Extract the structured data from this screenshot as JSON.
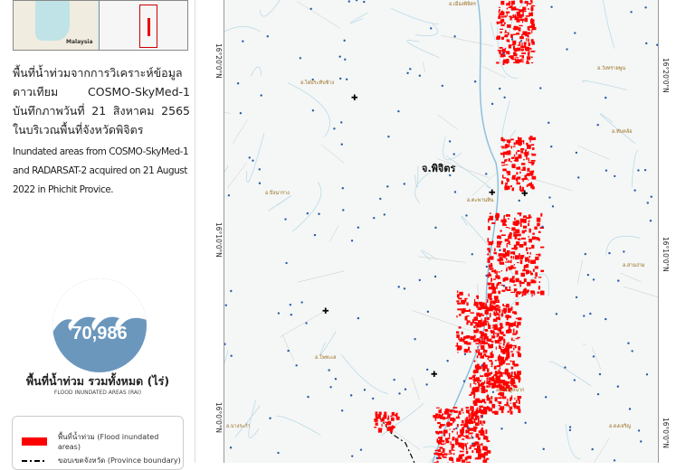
{
  "inset": {
    "label": "Malaysia"
  },
  "title": {
    "thai": "พื้นที่น้ำท่วมจากการวิเคราะห์ข้อมูล ดาวเทียม COSMO-SkyMed-1 บันทึกภาพวันที่ 21 สิงหาคม 2565 ในบริเวณพื้นที่จังหวัดพิจิตร",
    "english": "Inundated areas from COSMO-SkyMed-1 and RADARSAT-2  acquired on 21 August 2022 in Phichit Provice."
  },
  "summary": {
    "value": "70,986",
    "label_th": "พื้นที่น้ำท่วม รวมทั้งหมด (ไร่)",
    "label_en": "FLOOD INUNDATED AREAS (RAI)",
    "badge_color": "#6b97bd"
  },
  "legend": [
    {
      "label": "พื้นที่น้ำท่วม (Flood inundated areas)",
      "color": "#ff0000"
    },
    {
      "label": "ขอบเขตจังหวัด (Province boundary)",
      "color": "#000000"
    }
  ],
  "map": {
    "province_label": "จ.พิจิตร",
    "latitudes": [
      "16°20'0\"N",
      "16°10'0\"N",
      "16°0'0\"N"
    ],
    "places": [
      "อ.เมืองพิจิตร",
      "อ.ไผ่ประทับช้าง",
      "อ.วังทรายพูน",
      "อ.สามง่าม",
      "อ.ทับคล้อ",
      "อ.บึงนาราง",
      "อ.ตะพานหิน",
      "อ.โพทะเล",
      "อ.บางมูลนาก",
      "อ.ดงเจริญ",
      "อ.บางระกำ"
    ],
    "flood_color": "#ff0000"
  }
}
